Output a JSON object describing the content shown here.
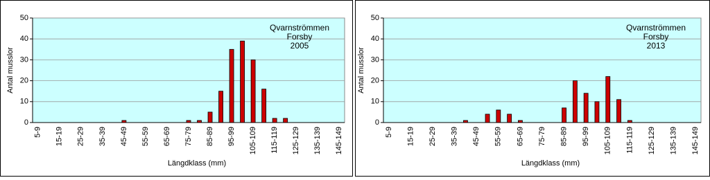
{
  "chart_data": [
    {
      "type": "bar",
      "annotation": [
        "Qvarnströmmen",
        "Forsby",
        "2005"
      ],
      "y_label": "Antal musslor",
      "x_label": "Längdklass  (mm)",
      "categories": [
        "5-9",
        null,
        "15-19",
        null,
        "25-29",
        null,
        "35-39",
        null,
        "45-49",
        null,
        "55-59",
        null,
        "65-69",
        null,
        "75-79",
        null,
        "85-89",
        null,
        "95-99",
        null,
        "105-109",
        null,
        "115-119",
        null,
        "125-129",
        null,
        "135-139",
        null,
        "145-149"
      ],
      "values": [
        0,
        0,
        0,
        0,
        0,
        0,
        0,
        0,
        1,
        0,
        0,
        0,
        0,
        0,
        1,
        1,
        5,
        15,
        35,
        39,
        30,
        16,
        2,
        2,
        0,
        0,
        0,
        0,
        0
      ],
      "color": "#cc0000",
      "ylim": [
        0,
        50
      ],
      "yticks": [
        0,
        10,
        20,
        30,
        40,
        50
      ],
      "grid": true
    },
    {
      "type": "bar",
      "annotation": [
        "Qvarnströmmen",
        "Forsby",
        "2013"
      ],
      "y_label": "Antal musslor",
      "x_label": "Längdklass  (mm)",
      "categories": [
        "5-9",
        null,
        "15-19",
        null,
        "25-29",
        null,
        "35-39",
        null,
        "45-49",
        null,
        "55-59",
        null,
        "65-69",
        null,
        "75-79",
        null,
        "85-89",
        null,
        "95-99",
        null,
        "105-109",
        null,
        "115-119",
        null,
        "125-129",
        null,
        "135-139",
        null,
        "145-149"
      ],
      "values": [
        0,
        0,
        0,
        0,
        0,
        0,
        0,
        1,
        0,
        4,
        6,
        4,
        1,
        0,
        0,
        0,
        7,
        20,
        14,
        10,
        22,
        11,
        1,
        0,
        0,
        0,
        0,
        0,
        0
      ],
      "color": "#cc0000",
      "ylim": [
        0,
        50
      ],
      "yticks": [
        0,
        10,
        20,
        30,
        40,
        50
      ],
      "grid": true
    }
  ]
}
